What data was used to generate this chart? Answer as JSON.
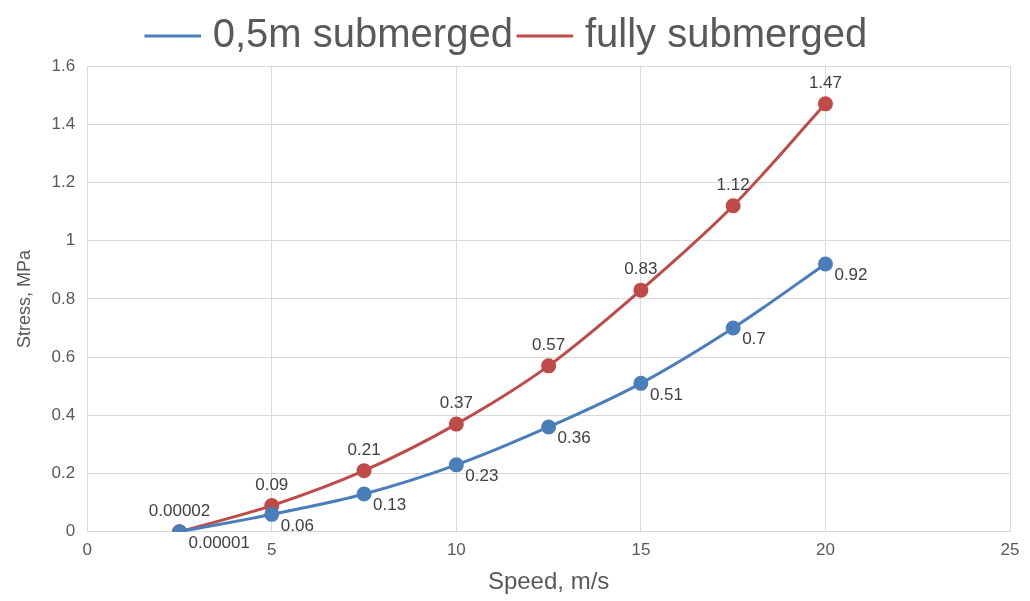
{
  "chart_data": {
    "type": "line",
    "xlabel": "Speed, m/s",
    "ylabel": "Stress, MPa",
    "x": [
      2.5,
      5,
      7.5,
      10,
      12.5,
      15,
      17.5,
      20
    ],
    "series": [
      {
        "name": "0,5m submerged",
        "color": "#4a7ebb",
        "values": [
          1e-05,
          0.06,
          0.13,
          0.23,
          0.36,
          0.51,
          0.7,
          0.92
        ],
        "value_labels": [
          "0.00001",
          "0.06",
          "0.13",
          "0.23",
          "0.36",
          "0.51",
          "0.7",
          "0.92"
        ]
      },
      {
        "name": "fully submerged",
        "color": "#be4b48",
        "values": [
          2e-05,
          0.09,
          0.21,
          0.37,
          0.57,
          0.83,
          1.12,
          1.47
        ],
        "value_labels": [
          "0.00002",
          "0.09",
          "0.21",
          "0.37",
          "0.57",
          "0.83",
          "1.12",
          "1.47"
        ]
      }
    ],
    "xlim": [
      0,
      25
    ],
    "xticks": [
      0,
      5,
      10,
      15,
      20,
      25
    ],
    "ylim": [
      0,
      1.6
    ],
    "yticks": [
      0,
      0.2,
      0.4,
      0.6,
      0.8,
      1,
      1.2,
      1.4,
      1.6
    ],
    "grid": true,
    "legend": "top",
    "marker": "circle",
    "line_style": "solid"
  }
}
